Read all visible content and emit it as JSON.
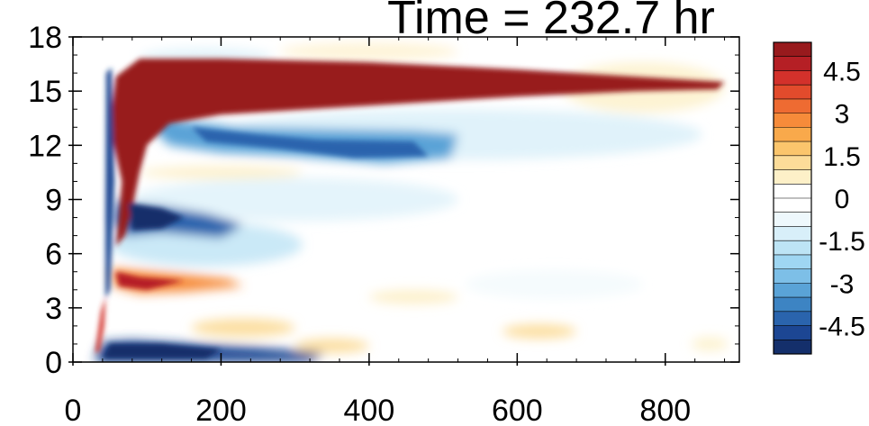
{
  "chart_data": {
    "type": "heatmap",
    "title": "Time = 232.7 hr",
    "xlabel": "",
    "ylabel": "",
    "xlim": [
      0,
      900
    ],
    "ylim": [
      0,
      18
    ],
    "x_ticks": [
      "0",
      "200",
      "400",
      "600",
      "800"
    ],
    "y_ticks": [
      "0",
      "3",
      "6",
      "9",
      "12",
      "15",
      "18"
    ],
    "grid": false,
    "colorbar": {
      "range": [
        -5.5,
        5.5
      ],
      "step": 0.5,
      "tick_labels": [
        "4.5",
        "3",
        "1.5",
        "0",
        "-1.5",
        "-3",
        "-4.5"
      ],
      "tick_values": [
        4.5,
        3,
        1.5,
        0,
        -1.5,
        -3,
        -4.5
      ],
      "colors": [
        "#981a1d",
        "#b51f25",
        "#d3312b",
        "#e24b2c",
        "#ee6b32",
        "#f68b3a",
        "#f9a94b",
        "#fbc56c",
        "#fcdc99",
        "#fdf0c8",
        "#ffffff",
        "#ffffff",
        "#eef8fc",
        "#d8eff9",
        "#bde4f5",
        "#9fd6f2",
        "#7dbfe7",
        "#5aa3d7",
        "#3d84c3",
        "#2a64ad",
        "#1c4693",
        "#142f6b"
      ]
    },
    "features": [
      {
        "name": "upper positive jet",
        "x_range": [
          40,
          870
        ],
        "y_center": 15.3,
        "value": 5.5
      },
      {
        "name": "upper negative band",
        "x_range": [
          110,
          500
        ],
        "y_center": 12.0,
        "value": -3.5
      },
      {
        "name": "mid negative cell",
        "x_range": [
          50,
          200
        ],
        "y_center": 8.0,
        "value": -5.0
      },
      {
        "name": "mid positive cell",
        "x_range": [
          45,
          220
        ],
        "y_center": 4.5,
        "value": 3.5
      },
      {
        "name": "surface negative layer",
        "x_range": [
          30,
          350
        ],
        "y_center": 0.6,
        "value": -5.5
      },
      {
        "name": "weak positive patches",
        "x_range": [
          150,
          800
        ],
        "y_center": 2.0,
        "value": 1.0
      }
    ]
  }
}
